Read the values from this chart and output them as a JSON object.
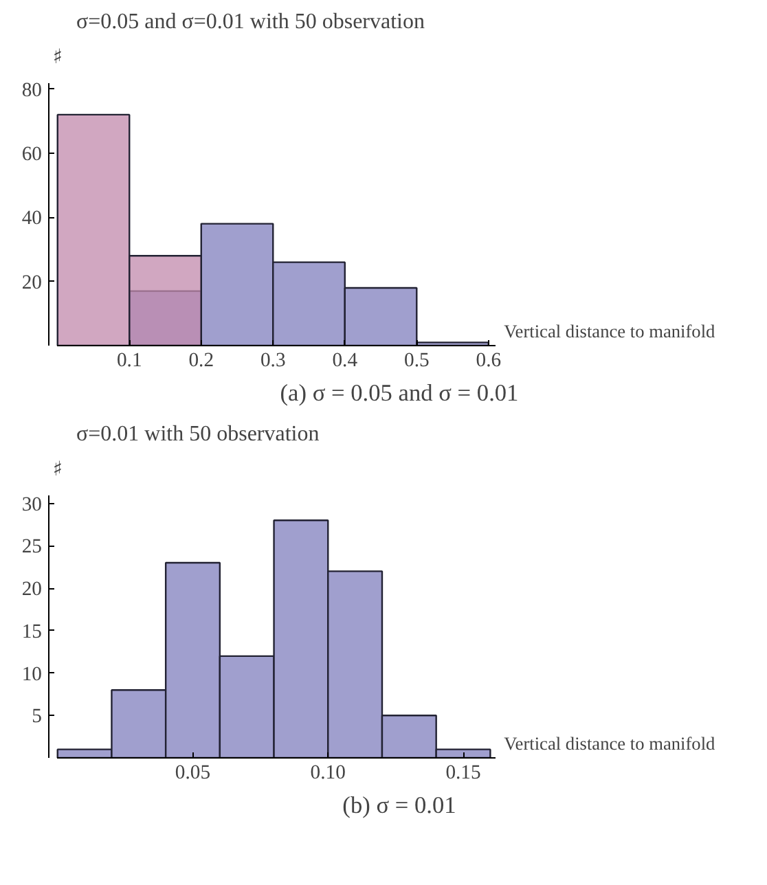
{
  "chart_data": [
    {
      "type": "histogram",
      "title": "σ=0.05 and σ=0.01 with 50 observation",
      "xlabel": "Vertical distance to manifold",
      "ylabel": "♯",
      "bins": [
        0,
        0.1,
        0.2,
        0.3,
        0.4,
        0.5,
        0.6
      ],
      "series": [
        {
          "color": "#a09fce",
          "values": [
            0,
            17,
            38,
            26,
            18,
            1
          ]
        },
        {
          "color": "#c28aac",
          "values": [
            72,
            28,
            0,
            0,
            0,
            0
          ]
        }
      ],
      "xlim": [
        0,
        0.61
      ],
      "ylim": [
        0,
        82
      ],
      "xticks": [
        0.1,
        0.2,
        0.3,
        0.4,
        0.5,
        0.6
      ],
      "yticks": [
        20,
        40,
        60,
        80
      ],
      "grid": false,
      "annotations": [
        "(a) σ = 0.05 and σ = 0.01"
      ]
    },
    {
      "type": "histogram",
      "title": "σ=0.01 with 50 observation",
      "xlabel": "Vertical distance to manifold",
      "ylabel": "♯",
      "bins": [
        0,
        0.02,
        0.04,
        0.06,
        0.08,
        0.1,
        0.12,
        0.14,
        0.16
      ],
      "series": [
        {
          "color": "#a09fce",
          "values": [
            1,
            8,
            23,
            12,
            28,
            22,
            5,
            1
          ]
        }
      ],
      "xlim": [
        0,
        0.162
      ],
      "ylim": [
        0,
        31
      ],
      "xticks": [
        {
          "value": 0.05,
          "label": "0.05"
        },
        {
          "value": 0.1,
          "label": "0.10"
        },
        {
          "value": 0.15,
          "label": "0.15"
        }
      ],
      "yticks": [
        5,
        10,
        15,
        20,
        25,
        30
      ],
      "grid": false,
      "annotations": [
        "(b) σ = 0.01"
      ]
    }
  ]
}
